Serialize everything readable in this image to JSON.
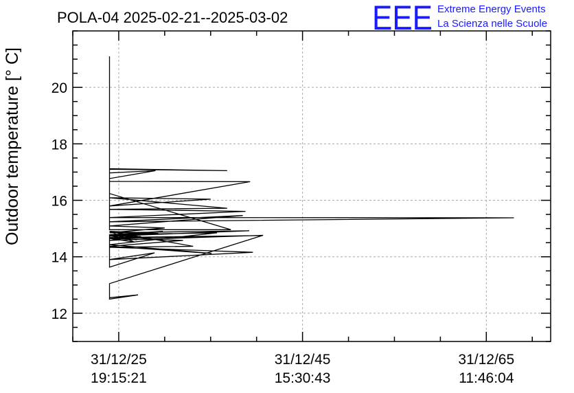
{
  "chart_data": {
    "type": "line",
    "title": "POLA-04 2025-02-21--2025-03-02",
    "ylabel": "Outdoor temperature [° C]",
    "xlabel": "",
    "ylim": [
      11,
      22
    ],
    "xlim": [
      -5,
      47
    ],
    "y_ticks": [
      12,
      14,
      16,
      18,
      20
    ],
    "y_minor_step": 0.5,
    "x_ticks": [
      {
        "pos": 0,
        "line1": "31/12/25",
        "line2": "19:15:21"
      },
      {
        "pos": 20,
        "line1": "31/12/45",
        "line2": "15:30:43"
      },
      {
        "pos": 40,
        "line1": "31/12/65",
        "line2": "11:46:04"
      }
    ],
    "x_minor_step": 5,
    "grid": true,
    "series": [
      {
        "x": [
          -1,
          -1,
          12.2,
          -1,
          -1,
          11.8,
          -1,
          -1,
          4,
          -1,
          -1,
          14.3,
          -1,
          10,
          -1,
          11.8,
          -1,
          13.8,
          -1,
          43,
          -1,
          13.5,
          -1,
          5,
          -1,
          14.2,
          -1,
          4.8,
          -1,
          10.7,
          -1,
          10.1,
          -1,
          7,
          -1,
          1.7,
          -1,
          3.1,
          -1,
          -1,
          3.9,
          -1,
          14.6,
          -1,
          8.1,
          -1,
          4.3,
          -1,
          4,
          -1,
          15.4,
          -1,
          2,
          -1,
          2.4,
          -1,
          15.7,
          -1,
          -1,
          2.1,
          -1
        ],
        "y": [
          21.1,
          14.96,
          14.96,
          16.24,
          17.12,
          17.05,
          17.1,
          16.97,
          17.05,
          16.77,
          16.67,
          16.66,
          15.8,
          16.04,
          16.09,
          15.72,
          15.68,
          15.61,
          15.39,
          15.38,
          15.24,
          15.46,
          15.09,
          15.02,
          14.85,
          14.92,
          14.73,
          14.9,
          14.78,
          14.85,
          14.43,
          14.12,
          14.37,
          14.58,
          14.65,
          14.52,
          14.9,
          14.64,
          14.78,
          13.63,
          14.14,
          13.9,
          14.16,
          14.34,
          14.37,
          14.9,
          14.83,
          14.74,
          14.88,
          14.65,
          14.75,
          14.68,
          14.6,
          14.74,
          14.72,
          14.58,
          14.76,
          13.05,
          12.5,
          12.65,
          12.55
        ]
      }
    ]
  },
  "logo": {
    "letters": "EEE",
    "line1": "Extreme Energy Events",
    "line2": "La Scienza nelle Scuole"
  }
}
